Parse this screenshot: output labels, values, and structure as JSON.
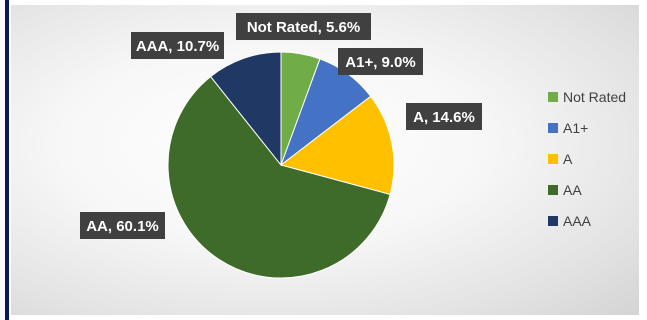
{
  "chart_data": {
    "type": "pie",
    "title": "",
    "categories": [
      "Not Rated",
      "A1+",
      "A",
      "AA",
      "AAA"
    ],
    "values": [
      5.6,
      9.0,
      14.6,
      60.1,
      10.7
    ],
    "unit": "%",
    "colors": [
      "#70ad47",
      "#4472c4",
      "#ffc000",
      "#3e6b2a",
      "#203864"
    ],
    "data_labels": [
      "Not Rated, 5.6%",
      "A1+, 9.0%",
      "A, 14.6%",
      "AA, 60.1%",
      "AAA, 10.7%"
    ],
    "legend": {
      "position": "right",
      "entries": [
        "Not Rated",
        "A1+",
        "A",
        "AA",
        "AAA"
      ]
    }
  }
}
